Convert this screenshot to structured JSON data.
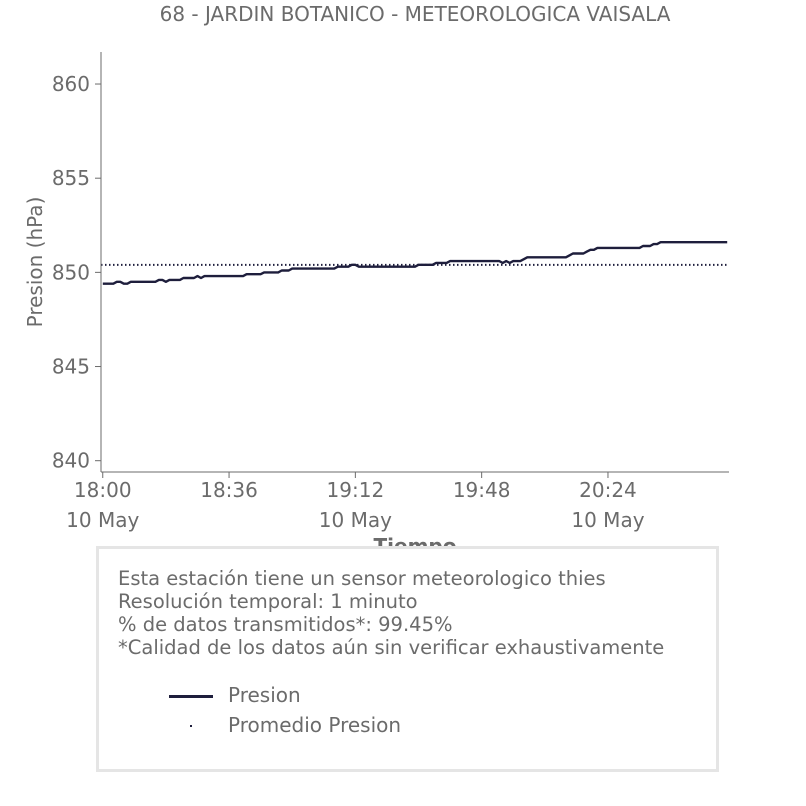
{
  "chart_data": {
    "type": "line",
    "title": "68 - JARDIN BOTANICO - METEOROLOGICA VAISALA",
    "xlabel": "Tiempo",
    "ylabel": "Presion (hPa)",
    "ylim": [
      839.4,
      861.7
    ],
    "yticks": [
      840,
      845,
      850,
      855,
      860
    ],
    "x_start": "18:00",
    "x_end": "21:04",
    "x_minutes_range": [
      -0.5,
      178.5
    ],
    "xticks": [
      {
        "time": "18:00",
        "date": "10 May"
      },
      {
        "time": "18:36",
        "date": ""
      },
      {
        "time": "19:12",
        "date": "10 May"
      },
      {
        "time": "19:48",
        "date": ""
      },
      {
        "time": "20:24",
        "date": "10 May"
      }
    ],
    "series": [
      {
        "name": "Presion",
        "color": "#1e1e3c",
        "style": "solid",
        "points": [
          [
            "18:00",
            849.4
          ],
          [
            "18:03",
            849.4
          ],
          [
            "18:04",
            849.5
          ],
          [
            "18:05",
            849.5
          ],
          [
            "18:06",
            849.4
          ],
          [
            "18:07",
            849.4
          ],
          [
            "18:08",
            849.5
          ],
          [
            "18:15",
            849.5
          ],
          [
            "18:16",
            849.6
          ],
          [
            "18:17",
            849.6
          ],
          [
            "18:18",
            849.5
          ],
          [
            "18:19",
            849.6
          ],
          [
            "18:22",
            849.6
          ],
          [
            "18:23",
            849.7
          ],
          [
            "18:26",
            849.7
          ],
          [
            "18:27",
            849.8
          ],
          [
            "18:28",
            849.7
          ],
          [
            "18:29",
            849.8
          ],
          [
            "18:40",
            849.8
          ],
          [
            "18:41",
            849.9
          ],
          [
            "18:45",
            849.9
          ],
          [
            "18:46",
            850.0
          ],
          [
            "18:50",
            850.0
          ],
          [
            "18:51",
            850.1
          ],
          [
            "18:53",
            850.1
          ],
          [
            "18:54",
            850.2
          ],
          [
            "19:06",
            850.2
          ],
          [
            "19:07",
            850.3
          ],
          [
            "19:10",
            850.3
          ],
          [
            "19:11",
            850.4
          ],
          [
            "19:12",
            850.4
          ],
          [
            "19:13",
            850.3
          ],
          [
            "19:29",
            850.3
          ],
          [
            "19:30",
            850.4
          ],
          [
            "19:34",
            850.4
          ],
          [
            "19:35",
            850.5
          ],
          [
            "19:38",
            850.5
          ],
          [
            "19:39",
            850.6
          ],
          [
            "19:53",
            850.6
          ],
          [
            "19:54",
            850.5
          ],
          [
            "19:55",
            850.6
          ],
          [
            "19:56",
            850.5
          ],
          [
            "19:57",
            850.6
          ],
          [
            "19:59",
            850.6
          ],
          [
            "20:00",
            850.7
          ],
          [
            "20:01",
            850.8
          ],
          [
            "20:12",
            850.8
          ],
          [
            "20:13",
            850.9
          ],
          [
            "20:14",
            851.0
          ],
          [
            "20:17",
            851.0
          ],
          [
            "20:18",
            851.1
          ],
          [
            "20:19",
            851.2
          ],
          [
            "20:20",
            851.2
          ],
          [
            "20:21",
            851.3
          ],
          [
            "20:33",
            851.3
          ],
          [
            "20:34",
            851.4
          ],
          [
            "20:36",
            851.4
          ],
          [
            "20:37",
            851.5
          ],
          [
            "20:38",
            851.5
          ],
          [
            "20:39",
            851.6
          ],
          [
            "20:58",
            851.6
          ]
        ]
      },
      {
        "name": "Promedio Presion",
        "color": "#1e1e3c",
        "style": "dotted",
        "constant": 850.4
      }
    ],
    "legend": {
      "placement": "below-chart-in-box",
      "entries": [
        "Presion",
        "Promedio Presion"
      ]
    },
    "grid": false
  },
  "info": {
    "lines": [
      "Esta estación tiene un sensor meteorologico thies",
      "Resolución temporal: 1 minuto",
      "% de datos transmitidos*: 99.45%",
      "*Calidad de los datos aún sin verificar exhaustivamente"
    ]
  },
  "colors": {
    "text": "#6b6b6b",
    "line": "#1e1e3c",
    "axis": "#6b6b6b",
    "box_border": "#e5e5e5"
  }
}
